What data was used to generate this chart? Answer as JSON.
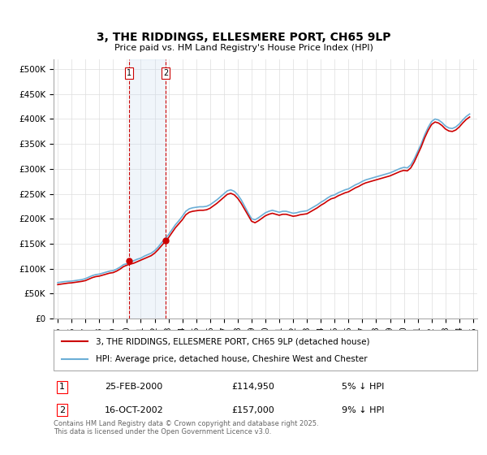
{
  "title": "3, THE RIDDINGS, ELLESMERE PORT, CH65 9LP",
  "subtitle": "Price paid vs. HM Land Registry's House Price Index (HPI)",
  "legend_line1": "3, THE RIDDINGS, ELLESMERE PORT, CH65 9LP (detached house)",
  "legend_line2": "HPI: Average price, detached house, Cheshire West and Chester",
  "annotation_text": "Contains HM Land Registry data © Crown copyright and database right 2025.\nThis data is licensed under the Open Government Licence v3.0.",
  "ylabel_ticks": [
    "£0",
    "£50K",
    "£100K",
    "£150K",
    "£200K",
    "£250K",
    "£300K",
    "£350K",
    "£400K",
    "£450K",
    "£500K"
  ],
  "ytick_values": [
    0,
    50000,
    100000,
    150000,
    200000,
    250000,
    300000,
    350000,
    400000,
    450000,
    500000
  ],
  "ylim": [
    0,
    520000
  ],
  "sale1_date": "25-FEB-2000",
  "sale1_price": 114950,
  "sale1_label": "1",
  "sale1_hpi_diff": "5% ↓ HPI",
  "sale2_date": "16-OCT-2002",
  "sale2_price": 157000,
  "sale2_label": "2",
  "sale2_hpi_diff": "9% ↓ HPI",
  "hpi_color": "#6baed6",
  "price_color": "#cc0000",
  "sale_marker_color": "#cc0000",
  "shade_color": "#c6dbef",
  "vline_color": "#cc0000",
  "grid_color": "#dddddd",
  "bg_color": "#ffffff",
  "hpi_data": {
    "dates": [
      1995.0,
      1995.25,
      1995.5,
      1995.75,
      1996.0,
      1996.25,
      1996.5,
      1996.75,
      1997.0,
      1997.25,
      1997.5,
      1997.75,
      1998.0,
      1998.25,
      1998.5,
      1998.75,
      1999.0,
      1999.25,
      1999.5,
      1999.75,
      2000.0,
      2000.25,
      2000.5,
      2000.75,
      2001.0,
      2001.25,
      2001.5,
      2001.75,
      2002.0,
      2002.25,
      2002.5,
      2002.75,
      2003.0,
      2003.25,
      2003.5,
      2003.75,
      2004.0,
      2004.25,
      2004.5,
      2004.75,
      2005.0,
      2005.25,
      2005.5,
      2005.75,
      2006.0,
      2006.25,
      2006.5,
      2006.75,
      2007.0,
      2007.25,
      2007.5,
      2007.75,
      2008.0,
      2008.25,
      2008.5,
      2008.75,
      2009.0,
      2009.25,
      2009.5,
      2009.75,
      2010.0,
      2010.25,
      2010.5,
      2010.75,
      2011.0,
      2011.25,
      2011.5,
      2011.75,
      2012.0,
      2012.25,
      2012.5,
      2012.75,
      2013.0,
      2013.25,
      2013.5,
      2013.75,
      2014.0,
      2014.25,
      2014.5,
      2014.75,
      2015.0,
      2015.25,
      2015.5,
      2015.75,
      2016.0,
      2016.25,
      2016.5,
      2016.75,
      2017.0,
      2017.25,
      2017.5,
      2017.75,
      2018.0,
      2018.25,
      2018.5,
      2018.75,
      2019.0,
      2019.25,
      2019.5,
      2019.75,
      2020.0,
      2020.25,
      2020.5,
      2020.75,
      2021.0,
      2021.25,
      2021.5,
      2021.75,
      2022.0,
      2022.25,
      2022.5,
      2022.75,
      2023.0,
      2023.25,
      2023.5,
      2023.75,
      2024.0,
      2024.25,
      2024.5,
      2024.75
    ],
    "values": [
      72000,
      73000,
      74000,
      74500,
      75000,
      76000,
      77000,
      78000,
      80000,
      83000,
      86000,
      88000,
      89000,
      91000,
      93000,
      95000,
      96000,
      99000,
      103000,
      108000,
      110000,
      113000,
      116000,
      119000,
      121000,
      125000,
      128000,
      131000,
      136000,
      143000,
      152000,
      160000,
      168000,
      178000,
      188000,
      196000,
      205000,
      215000,
      220000,
      222000,
      223000,
      224000,
      224000,
      225000,
      228000,
      233000,
      238000,
      244000,
      250000,
      256000,
      258000,
      255000,
      248000,
      238000,
      225000,
      212000,
      200000,
      198000,
      202000,
      207000,
      212000,
      215000,
      217000,
      215000,
      213000,
      215000,
      215000,
      213000,
      211000,
      212000,
      214000,
      215000,
      216000,
      220000,
      224000,
      228000,
      233000,
      237000,
      242000,
      246000,
      248000,
      252000,
      255000,
      258000,
      260000,
      264000,
      268000,
      271000,
      275000,
      278000,
      280000,
      282000,
      284000,
      286000,
      288000,
      290000,
      292000,
      295000,
      298000,
      301000,
      303000,
      302000,
      308000,
      320000,
      335000,
      350000,
      368000,
      383000,
      395000,
      400000,
      398000,
      393000,
      386000,
      382000,
      381000,
      384000,
      390000,
      398000,
      405000,
      410000
    ]
  },
  "price_data": {
    "dates": [
      1995.0,
      1995.25,
      1995.5,
      1995.75,
      1996.0,
      1996.25,
      1996.5,
      1996.75,
      1997.0,
      1997.25,
      1997.5,
      1997.75,
      1998.0,
      1998.25,
      1998.5,
      1998.75,
      1999.0,
      1999.25,
      1999.5,
      1999.75,
      2000.0,
      2000.25,
      2000.5,
      2000.75,
      2001.0,
      2001.25,
      2001.5,
      2001.75,
      2002.0,
      2002.25,
      2002.5,
      2002.75,
      2003.0,
      2003.25,
      2003.5,
      2003.75,
      2004.0,
      2004.25,
      2004.5,
      2004.75,
      2005.0,
      2005.25,
      2005.5,
      2005.75,
      2006.0,
      2006.25,
      2006.5,
      2006.75,
      2007.0,
      2007.25,
      2007.5,
      2007.75,
      2008.0,
      2008.25,
      2008.5,
      2008.75,
      2009.0,
      2009.25,
      2009.5,
      2009.75,
      2010.0,
      2010.25,
      2010.5,
      2010.75,
      2011.0,
      2011.25,
      2011.5,
      2011.75,
      2012.0,
      2012.25,
      2012.5,
      2012.75,
      2013.0,
      2013.25,
      2013.5,
      2013.75,
      2014.0,
      2014.25,
      2014.5,
      2014.75,
      2015.0,
      2015.25,
      2015.5,
      2015.75,
      2016.0,
      2016.25,
      2016.5,
      2016.75,
      2017.0,
      2017.25,
      2017.5,
      2017.75,
      2018.0,
      2018.25,
      2018.5,
      2018.75,
      2019.0,
      2019.25,
      2019.5,
      2019.75,
      2020.0,
      2020.25,
      2020.5,
      2020.75,
      2021.0,
      2021.25,
      2021.5,
      2021.75,
      2022.0,
      2022.25,
      2022.5,
      2022.75,
      2023.0,
      2023.25,
      2023.5,
      2023.75,
      2024.0,
      2024.25,
      2024.5,
      2024.75
    ],
    "values": [
      68000,
      69000,
      70000,
      71000,
      71500,
      72500,
      73500,
      74500,
      76000,
      79000,
      82000,
      84000,
      85000,
      87000,
      89000,
      91000,
      92000,
      95000,
      99000,
      104000,
      107000,
      109000,
      111000,
      114000,
      117000,
      120000,
      123000,
      126000,
      131000,
      138000,
      146000,
      154000,
      162000,
      172000,
      182000,
      190000,
      198000,
      208000,
      213000,
      215000,
      216000,
      217000,
      217000,
      218000,
      221000,
      226000,
      231000,
      237000,
      243000,
      249000,
      251000,
      248000,
      241000,
      231000,
      219000,
      207000,
      195000,
      192000,
      196000,
      201000,
      206000,
      209000,
      211000,
      209000,
      207000,
      209000,
      209000,
      207000,
      205000,
      206000,
      208000,
      209000,
      210000,
      214000,
      218000,
      222000,
      227000,
      231000,
      236000,
      240000,
      242000,
      246000,
      249000,
      252000,
      254000,
      258000,
      262000,
      265000,
      269000,
      272000,
      274000,
      276000,
      278000,
      280000,
      282000,
      284000,
      286000,
      289000,
      292000,
      295000,
      297000,
      296000,
      302000,
      314000,
      329000,
      344000,
      362000,
      377000,
      389000,
      394000,
      392000,
      387000,
      380000,
      376000,
      375000,
      378000,
      384000,
      392000,
      399000,
      404000
    ]
  },
  "sale1_x": 2000.15,
  "sale2_x": 2002.8,
  "xtick_years": [
    1995,
    1996,
    1997,
    1998,
    1999,
    2000,
    2001,
    2002,
    2003,
    2004,
    2005,
    2006,
    2007,
    2008,
    2009,
    2010,
    2011,
    2012,
    2013,
    2014,
    2015,
    2016,
    2017,
    2018,
    2019,
    2020,
    2021,
    2022,
    2023,
    2024,
    2025
  ],
  "xlim": [
    1994.7,
    2025.3
  ]
}
